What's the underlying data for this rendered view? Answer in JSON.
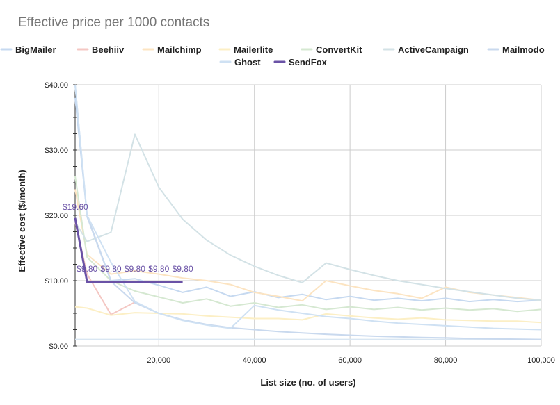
{
  "chart_data": {
    "type": "line",
    "title": "Effective price per 1000 contacts",
    "xlabel": "List size (no. of users)",
    "ylabel": "Effective cost ($/month)",
    "xlim": [
      2500,
      100000
    ],
    "ylim": [
      0,
      40
    ],
    "x_ticks": [
      20000,
      40000,
      60000,
      80000,
      100000
    ],
    "x_tick_labels": [
      "20,000",
      "40,000",
      "60,000",
      "80,000",
      "100,000"
    ],
    "y_ticks": [
      0,
      10,
      20,
      30,
      40
    ],
    "y_tick_labels": [
      "$0.00",
      "$10.00",
      "$20.00",
      "$30.00",
      "$40.00"
    ],
    "grid": true,
    "legend_position": "top",
    "highlighted_series": "SendFox",
    "series": [
      {
        "name": "BigMailer",
        "color": "#c6d9f0",
        "points": [
          [
            2500,
            38
          ],
          [
            5000,
            20
          ],
          [
            10000,
            10
          ],
          [
            15000,
            10.3
          ],
          [
            20000,
            9.3
          ],
          [
            25000,
            8.2
          ],
          [
            30000,
            9
          ],
          [
            35000,
            7.6
          ],
          [
            40000,
            8.3
          ],
          [
            45000,
            7.4
          ],
          [
            50000,
            7.9
          ],
          [
            55000,
            7.1
          ],
          [
            60000,
            7.6
          ],
          [
            65000,
            7
          ],
          [
            70000,
            7.3
          ],
          [
            75000,
            6.9
          ],
          [
            80000,
            7.3
          ],
          [
            85000,
            6.8
          ],
          [
            90000,
            7.1
          ],
          [
            95000,
            6.8
          ],
          [
            100000,
            7
          ]
        ]
      },
      {
        "name": "Beehiiv",
        "color": "#f4c7c3",
        "points": [
          [
            2500,
            19
          ],
          [
            5000,
            11
          ],
          [
            10000,
            4.8
          ],
          [
            15000,
            6.7
          ]
        ]
      },
      {
        "name": "Mailchimp",
        "color": "#fce4c2",
        "points": [
          [
            2500,
            24
          ],
          [
            5000,
            14
          ],
          [
            10000,
            11
          ],
          [
            15000,
            11.5
          ],
          [
            20000,
            11
          ],
          [
            25000,
            10.4
          ],
          [
            30000,
            10
          ],
          [
            35000,
            9.4
          ],
          [
            40000,
            8.2
          ],
          [
            45000,
            7.6
          ],
          [
            50000,
            6.9
          ],
          [
            55000,
            10
          ],
          [
            60000,
            9.2
          ],
          [
            65000,
            8.5
          ],
          [
            70000,
            8
          ],
          [
            75000,
            7.3
          ],
          [
            80000,
            9
          ],
          [
            85000,
            8.2
          ],
          [
            90000,
            7.8
          ],
          [
            95000,
            7.4
          ],
          [
            100000,
            7
          ]
        ]
      },
      {
        "name": "Mailerlite",
        "color": "#fcefc5",
        "points": [
          [
            2500,
            6
          ],
          [
            5000,
            5.8
          ],
          [
            10000,
            4.7
          ],
          [
            15000,
            5.1
          ],
          [
            20000,
            5
          ],
          [
            25000,
            4.9
          ],
          [
            30000,
            4.6
          ],
          [
            35000,
            4.4
          ],
          [
            40000,
            4.2
          ],
          [
            45000,
            4.2
          ],
          [
            50000,
            4
          ],
          [
            55000,
            4.9
          ],
          [
            60000,
            4.6
          ],
          [
            65000,
            4.3
          ],
          [
            70000,
            4.1
          ],
          [
            75000,
            4.3
          ],
          [
            80000,
            4
          ],
          [
            85000,
            3.9
          ],
          [
            90000,
            3.8
          ],
          [
            95000,
            3.8
          ],
          [
            100000,
            3.6
          ]
        ]
      },
      {
        "name": "ConvertKit",
        "color": "#d5e8d1",
        "points": [
          [
            2500,
            26
          ],
          [
            5000,
            13.6
          ],
          [
            10000,
            10
          ],
          [
            15000,
            8.4
          ],
          [
            20000,
            7.5
          ],
          [
            25000,
            6.6
          ],
          [
            30000,
            7.2
          ],
          [
            35000,
            6.1
          ],
          [
            40000,
            6.6
          ],
          [
            45000,
            5.9
          ],
          [
            50000,
            6.3
          ],
          [
            55000,
            5.6
          ],
          [
            60000,
            6
          ],
          [
            65000,
            5.6
          ],
          [
            70000,
            5.9
          ],
          [
            75000,
            5.5
          ],
          [
            80000,
            5.8
          ],
          [
            85000,
            5.5
          ],
          [
            90000,
            5.7
          ],
          [
            95000,
            5.3
          ],
          [
            100000,
            5.6
          ]
        ]
      },
      {
        "name": "ActiveCampaign",
        "color": "#d3e2e6",
        "points": [
          [
            2500,
            19
          ],
          [
            5000,
            16
          ],
          [
            10000,
            17.4
          ],
          [
            15000,
            32.4
          ],
          [
            20000,
            24.3
          ],
          [
            25000,
            19.4
          ],
          [
            30000,
            16.2
          ],
          [
            35000,
            13.9
          ],
          [
            40000,
            12.2
          ],
          [
            45000,
            10.8
          ],
          [
            50000,
            9.7
          ],
          [
            55000,
            12.7
          ],
          [
            60000,
            11.7
          ],
          [
            65000,
            10.8
          ],
          [
            70000,
            10
          ],
          [
            75000,
            9.4
          ],
          [
            80000,
            8.8
          ],
          [
            85000,
            8.3
          ],
          [
            90000,
            7.8
          ],
          [
            95000,
            7.3
          ],
          [
            100000,
            7
          ]
        ]
      },
      {
        "name": "Mailmodo",
        "color": "#c9d9ee",
        "points": [
          [
            2500,
            40
          ],
          [
            5000,
            19.8
          ],
          [
            10000,
            9.9
          ],
          [
            15000,
            6.6
          ],
          [
            20000,
            5
          ],
          [
            25000,
            4
          ],
          [
            30000,
            3.3
          ],
          [
            35000,
            2.8
          ],
          [
            40000,
            2.5
          ],
          [
            45000,
            2.2
          ],
          [
            50000,
            2
          ],
          [
            55000,
            1.8
          ],
          [
            60000,
            1.65
          ],
          [
            65000,
            1.5
          ],
          [
            70000,
            1.4
          ],
          [
            75000,
            1.3
          ],
          [
            80000,
            1.25
          ],
          [
            85000,
            1.15
          ],
          [
            90000,
            1.1
          ],
          [
            95000,
            1.05
          ],
          [
            100000,
            1
          ]
        ]
      },
      {
        "name": "Ghost",
        "color": "#cfe1f3",
        "points": [
          [
            2500,
            40
          ],
          [
            5000,
            20
          ],
          [
            10000,
            12.8
          ],
          [
            15000,
            6.8
          ],
          [
            20000,
            5
          ],
          [
            25000,
            3.9
          ],
          [
            30000,
            3.2
          ],
          [
            35000,
            2.7
          ],
          [
            40000,
            6.2
          ],
          [
            45000,
            5.5
          ],
          [
            50000,
            5
          ],
          [
            55000,
            4.5
          ],
          [
            60000,
            4.2
          ],
          [
            65000,
            3.8
          ],
          [
            70000,
            3.5
          ],
          [
            75000,
            3.3
          ],
          [
            80000,
            3.1
          ],
          [
            85000,
            2.9
          ],
          [
            90000,
            2.7
          ],
          [
            95000,
            2.6
          ],
          [
            100000,
            2.5
          ]
        ]
      },
      {
        "name": "SendFox",
        "color": "#6a52a6",
        "points": [
          [
            2500,
            19.6
          ],
          [
            5000,
            9.8
          ],
          [
            10000,
            9.8
          ],
          [
            15000,
            9.8
          ],
          [
            20000,
            9.8
          ],
          [
            25000,
            9.8
          ]
        ],
        "labels": [
          "$19.60",
          "$9.80",
          "$9.80",
          "$9.80",
          "$9.80",
          "$9.80"
        ]
      }
    ],
    "flat_line": {
      "y": 1,
      "color": "#d9e6f2"
    }
  }
}
